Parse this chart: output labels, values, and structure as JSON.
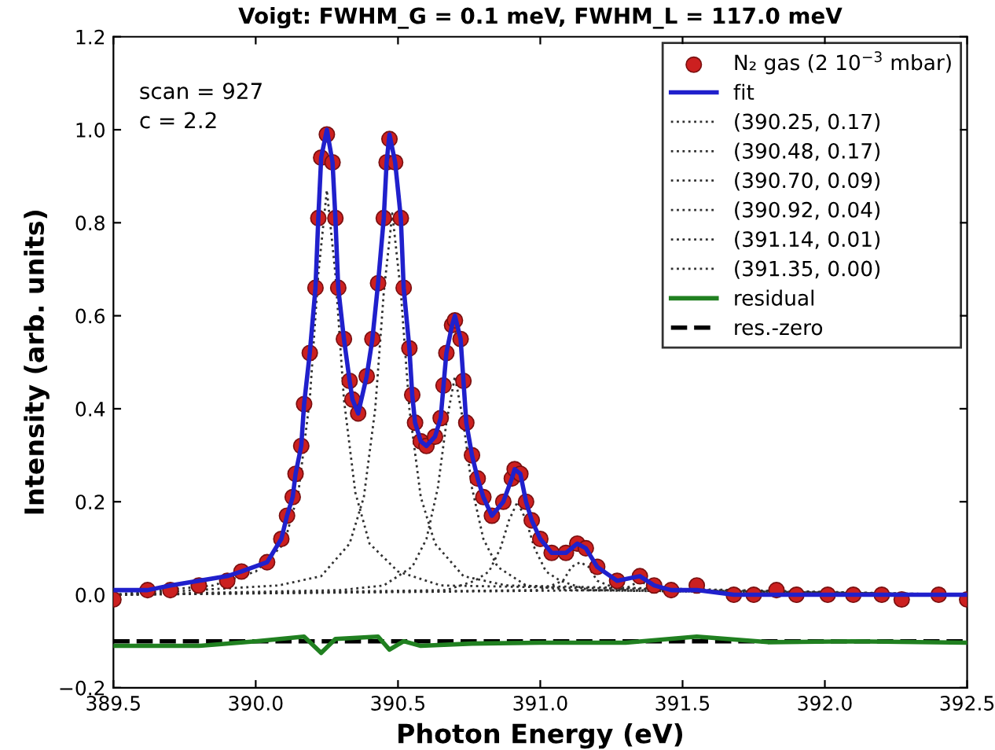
{
  "chart_data": {
    "type": "line",
    "title": "Voigt: FWHM_G = 0.1 meV, FWHM_L = 117.0 meV",
    "xlabel": "Photon Energy (eV)",
    "ylabel": "Intensity (arb. units)",
    "annotations": [
      "scan = 927",
      "c = 2.2"
    ],
    "xlim": [
      389.5,
      392.5
    ],
    "xticks": [
      {
        "value": 389.5,
        "label": "389.5"
      },
      {
        "value": 390.0,
        "label": "390.0"
      },
      {
        "value": 390.5,
        "label": "390.5"
      },
      {
        "value": 391.0,
        "label": "391.0"
      },
      {
        "value": 391.5,
        "label": "391.5"
      },
      {
        "value": 392.0,
        "label": "392.0"
      },
      {
        "value": 392.5,
        "label": "392.5"
      }
    ],
    "ylim": [
      -0.2,
      1.2
    ],
    "yticks": [
      {
        "value": -0.2,
        "label": "−0.2"
      },
      {
        "value": 0.0,
        "label": "0.0"
      },
      {
        "value": 0.2,
        "label": "0.2"
      },
      {
        "value": 0.4,
        "label": "0.4"
      },
      {
        "value": 0.6,
        "label": "0.6"
      },
      {
        "value": 0.8,
        "label": "0.8"
      },
      {
        "value": 1.0,
        "label": "1.0"
      },
      {
        "value": 1.2,
        "label": "1.2"
      }
    ],
    "legend": "top right",
    "series": [
      {
        "name": "N₂ gas (2 10$^{−3}$ mbar)",
        "type": "scatter",
        "marker": "circle",
        "color": "#cc2020",
        "x": [
          389.5,
          389.62,
          389.7,
          389.8,
          389.9,
          389.95,
          390.04,
          390.09,
          390.11,
          390.13,
          390.14,
          390.16,
          390.17,
          390.19,
          390.21,
          390.22,
          390.23,
          390.25,
          390.27,
          390.28,
          390.29,
          390.31,
          390.33,
          390.34,
          390.36,
          390.39,
          390.41,
          390.43,
          390.45,
          390.46,
          390.47,
          390.49,
          390.51,
          390.52,
          390.54,
          390.55,
          390.56,
          390.58,
          390.6,
          390.63,
          390.65,
          390.66,
          390.67,
          390.69,
          390.7,
          390.72,
          390.73,
          390.74,
          390.76,
          390.78,
          390.8,
          390.83,
          390.87,
          390.9,
          390.91,
          390.93,
          390.95,
          390.97,
          391.0,
          391.04,
          391.09,
          391.13,
          391.16,
          391.2,
          391.27,
          391.35,
          391.4,
          391.46,
          391.55,
          391.68,
          391.75,
          391.83,
          391.9,
          392.01,
          392.1,
          392.2,
          392.27,
          392.4,
          392.5
        ],
        "values": [
          -0.01,
          0.01,
          0.01,
          0.02,
          0.03,
          0.05,
          0.07,
          0.12,
          0.17,
          0.21,
          0.26,
          0.32,
          0.41,
          0.52,
          0.66,
          0.81,
          0.94,
          0.99,
          0.93,
          0.81,
          0.66,
          0.55,
          0.46,
          0.42,
          0.39,
          0.47,
          0.55,
          0.67,
          0.81,
          0.93,
          0.98,
          0.93,
          0.81,
          0.66,
          0.53,
          0.43,
          0.37,
          0.33,
          0.32,
          0.34,
          0.38,
          0.45,
          0.52,
          0.58,
          0.59,
          0.55,
          0.46,
          0.37,
          0.3,
          0.25,
          0.21,
          0.17,
          0.2,
          0.25,
          0.27,
          0.26,
          0.2,
          0.16,
          0.12,
          0.09,
          0.09,
          0.11,
          0.1,
          0.06,
          0.03,
          0.04,
          0.02,
          0.01,
          0.02,
          0.0,
          0.0,
          0.01,
          0.0,
          0.0,
          0.0,
          0.0,
          -0.01,
          0.0,
          -0.01
        ]
      },
      {
        "name": "fit",
        "line_style": "solid",
        "color": "#2020cc",
        "x": [
          389.5,
          389.62,
          389.7,
          389.8,
          389.9,
          389.95,
          390.04,
          390.09,
          390.11,
          390.13,
          390.14,
          390.16,
          390.17,
          390.19,
          390.21,
          390.22,
          390.23,
          390.25,
          390.27,
          390.28,
          390.29,
          390.31,
          390.33,
          390.34,
          390.36,
          390.39,
          390.41,
          390.43,
          390.45,
          390.46,
          390.47,
          390.49,
          390.51,
          390.52,
          390.54,
          390.55,
          390.56,
          390.58,
          390.6,
          390.63,
          390.65,
          390.66,
          390.67,
          390.69,
          390.7,
          390.72,
          390.73,
          390.74,
          390.76,
          390.78,
          390.8,
          390.83,
          390.87,
          390.9,
          390.91,
          390.93,
          390.95,
          390.97,
          391.0,
          391.04,
          391.09,
          391.13,
          391.16,
          391.2,
          391.27,
          391.35,
          391.4,
          391.46,
          391.55,
          391.68,
          391.75,
          391.83,
          391.9,
          392.01,
          392.1,
          392.2,
          392.27,
          392.4,
          392.5
        ],
        "values": [
          0.01,
          0.01,
          0.02,
          0.03,
          0.04,
          0.05,
          0.07,
          0.12,
          0.17,
          0.21,
          0.26,
          0.32,
          0.41,
          0.52,
          0.66,
          0.81,
          0.94,
          1.0,
          0.93,
          0.81,
          0.66,
          0.55,
          0.46,
          0.42,
          0.39,
          0.47,
          0.55,
          0.67,
          0.81,
          0.93,
          0.99,
          0.93,
          0.81,
          0.66,
          0.53,
          0.43,
          0.37,
          0.33,
          0.32,
          0.34,
          0.38,
          0.45,
          0.52,
          0.58,
          0.6,
          0.55,
          0.46,
          0.37,
          0.3,
          0.25,
          0.21,
          0.17,
          0.2,
          0.25,
          0.27,
          0.26,
          0.2,
          0.16,
          0.12,
          0.09,
          0.09,
          0.11,
          0.1,
          0.06,
          0.03,
          0.04,
          0.02,
          0.01,
          0.01,
          0.0,
          0.0,
          0.0,
          0.0,
          0.0,
          0.0,
          0.0,
          0.0,
          0.0,
          0.0
        ]
      },
      {
        "name": "(390.25, 0.17)",
        "type": "line",
        "line_style": "dotted",
        "color": "#303030",
        "x": [
          389.5,
          389.85,
          390.0,
          390.1,
          390.15,
          390.19,
          390.22,
          390.25,
          390.28,
          390.31,
          390.35,
          390.4,
          390.5,
          390.65,
          392.5
        ],
        "values": [
          0,
          0.02,
          0.05,
          0.11,
          0.22,
          0.42,
          0.69,
          0.87,
          0.69,
          0.42,
          0.22,
          0.11,
          0.05,
          0.02,
          0
        ]
      },
      {
        "name": "(390.48, 0.17)",
        "type": "line",
        "line_style": "dotted",
        "color": "#303030",
        "x": [
          389.5,
          390.08,
          390.23,
          390.33,
          390.38,
          390.42,
          390.45,
          390.48,
          390.51,
          390.54,
          390.58,
          390.63,
          390.73,
          390.88,
          392.5
        ],
        "values": [
          0,
          0.02,
          0.04,
          0.11,
          0.21,
          0.4,
          0.65,
          0.82,
          0.65,
          0.4,
          0.21,
          0.11,
          0.04,
          0.02,
          0
        ]
      },
      {
        "name": "(390.70, 0.09)",
        "type": "line",
        "line_style": "dotted",
        "color": "#303030",
        "x": [
          389.5,
          390.3,
          390.45,
          390.55,
          390.6,
          390.64,
          390.67,
          390.7,
          390.73,
          390.76,
          390.8,
          390.85,
          390.95,
          391.1,
          392.5
        ],
        "values": [
          0,
          0.01,
          0.02,
          0.06,
          0.12,
          0.23,
          0.37,
          0.47,
          0.37,
          0.23,
          0.12,
          0.06,
          0.02,
          0.01,
          0
        ]
      },
      {
        "name": "(390.92, 0.04)",
        "type": "line",
        "line_style": "dotted",
        "color": "#303030",
        "x": [
          389.5,
          390.67,
          390.77,
          390.82,
          390.86,
          390.89,
          390.92,
          390.95,
          390.98,
          391.02,
          391.07,
          391.17,
          392.5
        ],
        "values": [
          0,
          0.01,
          0.03,
          0.05,
          0.1,
          0.16,
          0.2,
          0.16,
          0.1,
          0.05,
          0.03,
          0.01,
          0
        ]
      },
      {
        "name": "(391.14, 0.01)",
        "type": "line",
        "line_style": "dotted",
        "color": "#303030",
        "x": [
          389.5,
          390.99,
          391.04,
          391.08,
          391.11,
          391.14,
          391.17,
          391.2,
          391.24,
          391.29,
          392.5
        ],
        "values": [
          0,
          0.01,
          0.02,
          0.03,
          0.06,
          0.07,
          0.06,
          0.03,
          0.02,
          0.01,
          0
        ]
      },
      {
        "name": "(391.35, 0.00)",
        "type": "line",
        "line_style": "dotted",
        "color": "#303030",
        "x": [
          389.5,
          391.25,
          391.29,
          391.32,
          391.35,
          391.38,
          391.41,
          391.45,
          392.5
        ],
        "values": [
          0,
          0.01,
          0.01,
          0.02,
          0.03,
          0.02,
          0.01,
          0.01,
          0
        ]
      },
      {
        "name": "residual",
        "line_style": "solid",
        "color": "#208020",
        "x": [
          389.5,
          389.8,
          390.0,
          390.17,
          390.23,
          390.28,
          390.43,
          390.47,
          390.52,
          390.58,
          390.76,
          391.0,
          391.3,
          391.55,
          391.8,
          392.1,
          392.5
        ],
        "values": [
          -0.11,
          -0.11,
          -0.1,
          -0.09,
          -0.125,
          -0.095,
          -0.09,
          -0.118,
          -0.1,
          -0.11,
          -0.105,
          -0.103,
          -0.103,
          -0.09,
          -0.102,
          -0.1,
          -0.103
        ]
      },
      {
        "name": "res.-zero",
        "line_style": "dashed",
        "color": "#000000",
        "x": [
          389.5,
          392.5
        ],
        "values": [
          -0.1,
          -0.1
        ]
      }
    ]
  }
}
